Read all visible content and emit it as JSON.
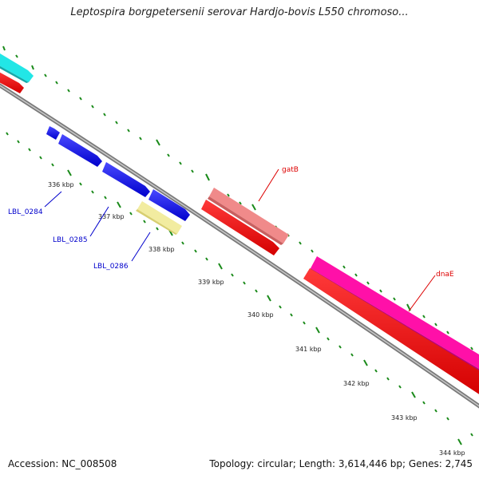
{
  "title": "Leptospira borgpetersenii serovar Hardjo-bovis L550 chromoso...",
  "footer": {
    "accession": "Accession: NC_008508",
    "summary": "Topology: circular; Length: 3,614,446 bp; Genes: 2,745"
  },
  "colors": {
    "backbone": "#8c8c8c",
    "tick": "#1a8a1a",
    "blue_gene": "#1010e6",
    "yellow_gene": "#f2eca0",
    "red_cds": "#ff0000",
    "pink_gene": "#f08a8a",
    "magenta_gene": "#ff10a8",
    "cyan_gene": "#22e6e6"
  },
  "scale": {
    "ticks": [
      {
        "kbp": 336,
        "label": "336 kbp"
      },
      {
        "kbp": 337,
        "label": "337 kbp"
      },
      {
        "kbp": 338,
        "label": "338 kbp"
      },
      {
        "kbp": 339,
        "label": "339 kbp"
      },
      {
        "kbp": 340,
        "label": "340 kbp"
      },
      {
        "kbp": 341,
        "label": "341 kbp"
      },
      {
        "kbp": 342,
        "label": "342 kbp"
      },
      {
        "kbp": 343,
        "label": "343 kbp"
      },
      {
        "kbp": 344,
        "label": "344 kbp"
      }
    ]
  },
  "genes": [
    {
      "label": "LBL_0284",
      "label_color": "#0000cc"
    },
    {
      "label": "LBL_0285",
      "label_color": "#0000cc"
    },
    {
      "label": "LBL_0286",
      "label_color": "#0000cc"
    },
    {
      "label": "gatB",
      "label_color": "#dd0000"
    },
    {
      "label": "dnaE",
      "label_color": "#dd0000"
    }
  ]
}
